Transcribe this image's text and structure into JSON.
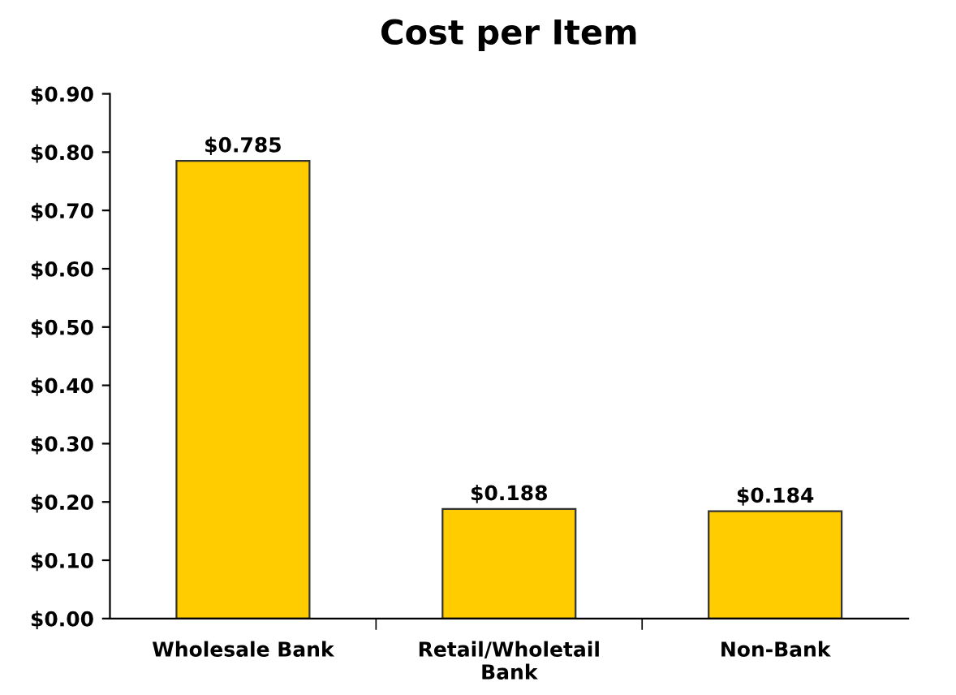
{
  "chart_data": {
    "type": "bar",
    "title": "Cost per Item",
    "categories": [
      "Wholesale Bank",
      "Retail/Wholetail\nBank",
      "Non-Bank"
    ],
    "values": [
      0.785,
      0.188,
      0.184
    ],
    "value_labels": [
      "$0.785",
      "$0.188",
      "$0.184"
    ],
    "color": "#ffcc00",
    "ylim": [
      0,
      0.9
    ],
    "yticks": [
      {
        "value": 0,
        "label": "$0.00"
      },
      {
        "value": 0.1,
        "label": "$0.10"
      },
      {
        "value": 0.2,
        "label": "$0.20"
      },
      {
        "value": 0.3,
        "label": "$0.30"
      },
      {
        "value": 0.4,
        "label": "$0.40"
      },
      {
        "value": 0.5,
        "label": "$0.50"
      },
      {
        "value": 0.6,
        "label": "$0.60"
      },
      {
        "value": 0.7,
        "label": "$0.70"
      },
      {
        "value": 0.8,
        "label": "$0.80"
      },
      {
        "value": 0.9,
        "label": "$0.90"
      }
    ],
    "grid": false,
    "legend": false
  }
}
